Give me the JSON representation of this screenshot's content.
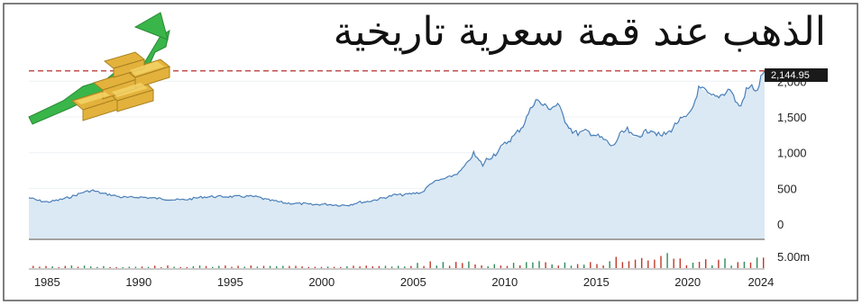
{
  "title": "الذهب عند قمة سعرية تاريخية",
  "colors": {
    "line": "#4a7fb8",
    "area": "#dbe9f4",
    "peak_line": "#c0504d",
    "price_label_bg": "#1a1a1a",
    "volume_up": "#2e8b57",
    "volume_down": "#c0392b",
    "frame": "#555555",
    "arrow_green": "#39b54a",
    "gold": "#e3b23c"
  },
  "icons": {
    "logo": "gold-bars-with-rising-arrow-icon"
  },
  "chart_data": {
    "type": "area",
    "title": "الذهب عند قمة سعرية تاريخية",
    "xlabel": "",
    "ylabel": "",
    "x_ticks": [
      "1985",
      "1990",
      "1995",
      "2000",
      "2005",
      "2010",
      "2015",
      "2020",
      "2024"
    ],
    "y_ticks": [
      "2,000",
      "1,500",
      "1,000",
      "500",
      "0"
    ],
    "volume_tick": "5.00m",
    "ylim": [
      -200,
      2180
    ],
    "xlim": [
      1984.0,
      2024.2
    ],
    "last_price_label": "2,144.95",
    "last_price": 2144.95,
    "series": [
      {
        "x": [
          1984.0,
          1984.5,
          1985.0,
          1985.5,
          1986.0,
          1986.5,
          1987.0,
          1987.5,
          1988.0,
          1988.5,
          1989.0,
          1989.5,
          1990.0,
          1990.5,
          1991.0,
          1991.5,
          1992.0,
          1992.5,
          1993.0,
          1993.5,
          1994.0,
          1994.5,
          1995.0,
          1995.5,
          1996.0,
          1996.5,
          1997.0,
          1997.5,
          1998.0,
          1998.5,
          1999.0,
          1999.5,
          2000.0,
          2000.5,
          2001.0,
          2001.5,
          2002.0,
          2002.5,
          2003.0,
          2003.5,
          2004.0,
          2004.5,
          2005.0,
          2005.5,
          2006.0,
          2006.5,
          2007.0,
          2007.5,
          2008.0,
          2008.3,
          2008.8,
          2009.0,
          2009.5,
          2010.0,
          2010.5,
          2011.0,
          2011.3,
          2011.7,
          2012.0,
          2012.5,
          2012.9,
          2013.3,
          2013.7,
          2014.0,
          2014.5,
          2015.0,
          2015.5,
          2015.9,
          2016.3,
          2016.7,
          2017.0,
          2017.5,
          2018.0,
          2018.5,
          2019.0,
          2019.5,
          2020.0,
          2020.3,
          2020.6,
          2020.9,
          2021.2,
          2021.6,
          2022.0,
          2022.3,
          2022.7,
          2022.9,
          2023.2,
          2023.5,
          2023.8,
          2024.0,
          2024.2
        ],
        "values": [
          370,
          330,
          310,
          330,
          360,
          400,
          450,
          470,
          430,
          410,
          380,
          370,
          380,
          370,
          360,
          350,
          340,
          340,
          360,
          380,
          385,
          385,
          385,
          385,
          390,
          380,
          340,
          320,
          295,
          290,
          285,
          270,
          280,
          275,
          265,
          270,
          305,
          315,
          345,
          375,
          410,
          410,
          430,
          445,
          580,
          620,
          660,
          720,
          870,
          980,
          820,
          900,
          990,
          1120,
          1230,
          1380,
          1550,
          1750,
          1680,
          1620,
          1680,
          1450,
          1300,
          1270,
          1300,
          1240,
          1170,
          1080,
          1250,
          1320,
          1220,
          1260,
          1330,
          1230,
          1290,
          1450,
          1500,
          1650,
          1900,
          1880,
          1800,
          1780,
          1830,
          1900,
          1680,
          1650,
          1880,
          1930,
          1850,
          2050,
          2145
        ]
      }
    ]
  }
}
